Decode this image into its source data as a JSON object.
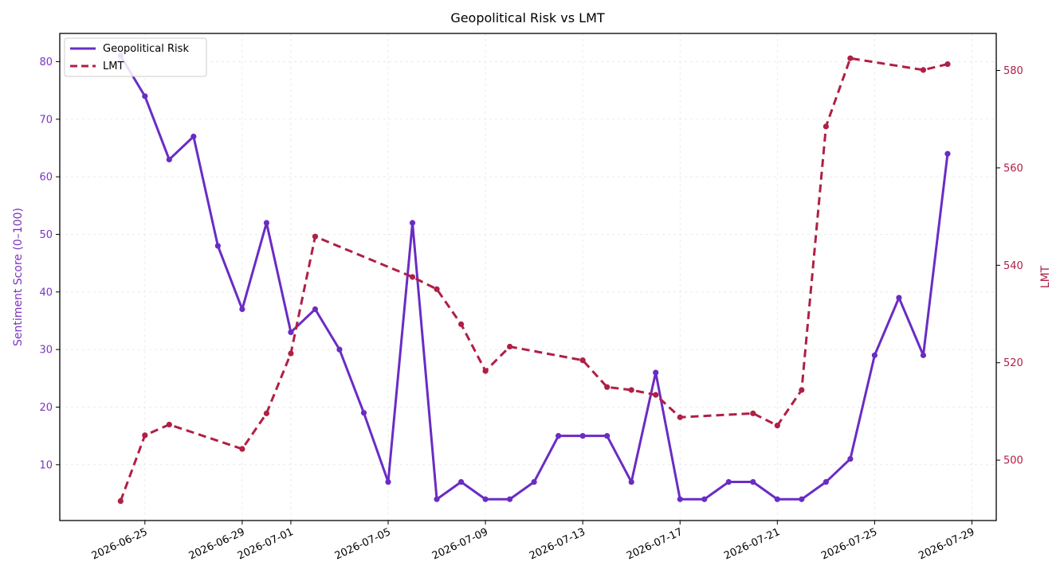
{
  "chart_data": {
    "type": "line",
    "title": "Geopolitical Risk vs LMT",
    "ylabel_left": "Sentiment Score (0–100)",
    "ylabel_right": "LMT",
    "left_color": "#7b35c1",
    "right_color": "#b01f45",
    "x_ticks": [
      "2026-06-25",
      "2026-06-29",
      "2026-07-01",
      "2026-07-05",
      "2026-07-09",
      "2026-07-13",
      "2026-07-17",
      "2026-07-21",
      "2026-07-25",
      "2026-07-29"
    ],
    "y_left_ticks": [
      10,
      20,
      30,
      40,
      50,
      60,
      70,
      80
    ],
    "y_right_ticks": [
      500,
      520,
      540,
      560,
      580
    ],
    "y_left_lim": [
      0.3,
      84.9
    ],
    "y_right_lim": [
      487.6,
      587.6
    ],
    "x_lim": [
      "2026-06-21T12:00",
      "2026-07-30T00:00"
    ],
    "grid": true,
    "legend_position": "top-left",
    "series": [
      {
        "name": "Geopolitical Risk",
        "axis": "left",
        "style": "solid",
        "color": "#6a2cc4",
        "points": [
          [
            "2026-06-24",
            81
          ],
          [
            "2026-06-25",
            74
          ],
          [
            "2026-06-26",
            63
          ],
          [
            "2026-06-27",
            67
          ],
          [
            "2026-06-28",
            48
          ],
          [
            "2026-06-29",
            37
          ],
          [
            "2026-06-30",
            52
          ],
          [
            "2026-07-01",
            33
          ],
          [
            "2026-07-02",
            37
          ],
          [
            "2026-07-03",
            30
          ],
          [
            "2026-07-04",
            19
          ],
          [
            "2026-07-05",
            7
          ],
          [
            "2026-07-06",
            52
          ],
          [
            "2026-07-07",
            4
          ],
          [
            "2026-07-08",
            7
          ],
          [
            "2026-07-09",
            4
          ],
          [
            "2026-07-10",
            4
          ],
          [
            "2026-07-11",
            7
          ],
          [
            "2026-07-12",
            15
          ],
          [
            "2026-07-13",
            15
          ],
          [
            "2026-07-14",
            15
          ],
          [
            "2026-07-15",
            7
          ],
          [
            "2026-07-16",
            26
          ],
          [
            "2026-07-17",
            4
          ],
          [
            "2026-07-18",
            4
          ],
          [
            "2026-07-19",
            7
          ],
          [
            "2026-07-20",
            7
          ],
          [
            "2026-07-21",
            4
          ],
          [
            "2026-07-22",
            4
          ],
          [
            "2026-07-23",
            7
          ],
          [
            "2026-07-24",
            11
          ],
          [
            "2026-07-25",
            29
          ],
          [
            "2026-07-26",
            39
          ],
          [
            "2026-07-27",
            29
          ],
          [
            "2026-07-28",
            64
          ]
        ]
      },
      {
        "name": "LMT",
        "axis": "right",
        "style": "dashed",
        "color": "#b01f45",
        "points": [
          [
            "2026-06-24",
            491.6
          ],
          [
            "2026-06-25",
            505.1
          ],
          [
            "2026-06-26",
            507.3
          ],
          [
            "2026-06-29",
            502.3
          ],
          [
            "2026-06-30",
            509.6
          ],
          [
            "2026-07-01",
            521.9
          ],
          [
            "2026-07-02",
            545.9
          ],
          [
            "2026-07-06",
            537.6
          ],
          [
            "2026-07-07",
            535.1
          ],
          [
            "2026-07-08",
            527.9
          ],
          [
            "2026-07-09",
            518.3
          ],
          [
            "2026-07-10",
            523.3
          ],
          [
            "2026-07-13",
            520.5
          ],
          [
            "2026-07-14",
            515.0
          ],
          [
            "2026-07-15",
            514.4
          ],
          [
            "2026-07-16",
            513.4
          ],
          [
            "2026-07-17",
            508.8
          ],
          [
            "2026-07-20",
            509.6
          ],
          [
            "2026-07-21",
            507.1
          ],
          [
            "2026-07-22",
            514.4
          ],
          [
            "2026-07-23",
            568.5
          ],
          [
            "2026-07-24",
            582.5
          ],
          [
            "2026-07-27",
            580.1
          ],
          [
            "2026-07-28",
            581.3
          ]
        ]
      }
    ]
  }
}
